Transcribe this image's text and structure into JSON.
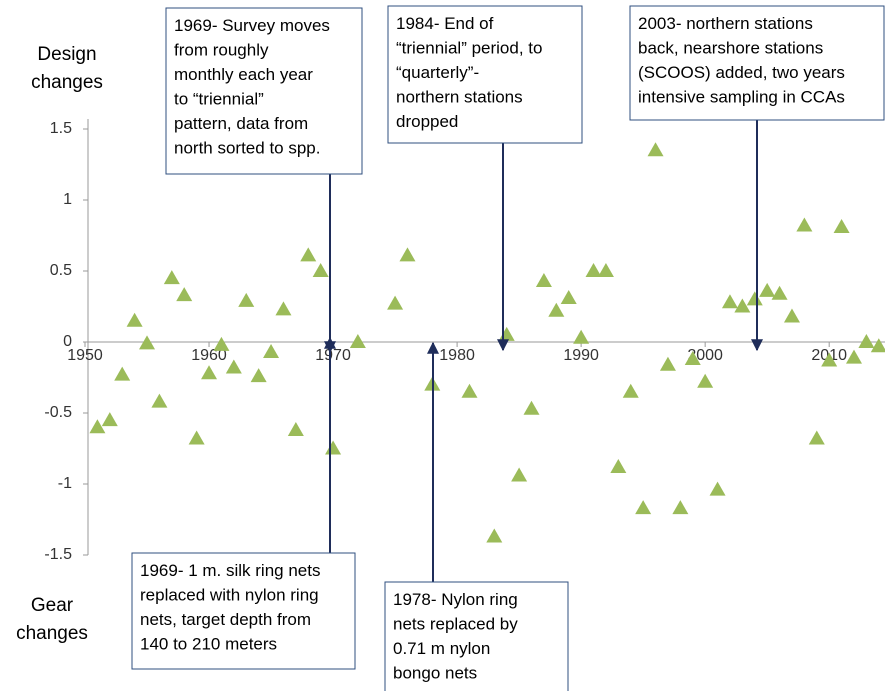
{
  "chart_data": {
    "type": "scatter",
    "side_labels": [
      [
        "Design",
        "changes"
      ],
      [
        "Gear",
        "changes"
      ]
    ],
    "x": [
      1951,
      1952,
      1953,
      1954,
      1955,
      1956,
      1957,
      1958,
      1959,
      1960,
      1961,
      1962,
      1963,
      1964,
      1965,
      1966,
      1967,
      1968,
      1969,
      1970,
      1972,
      1975,
      1976,
      1978,
      1981,
      1983,
      1984,
      1985,
      1986,
      1987,
      1988,
      1989,
      1990,
      1991,
      1992,
      1993,
      1994,
      1995,
      1996,
      1997,
      1998,
      1999,
      2000,
      2001,
      2002,
      2003,
      2004,
      2005,
      2006,
      2007,
      2008,
      2009,
      2010,
      2011,
      2012,
      2013,
      2014
    ],
    "values": [
      -0.6,
      -0.55,
      -0.23,
      0.15,
      -0.01,
      -0.42,
      0.45,
      0.33,
      -0.68,
      -0.22,
      -0.02,
      -0.18,
      0.29,
      -0.24,
      -0.07,
      0.23,
      -0.62,
      0.61,
      0.5,
      -0.75,
      0.0,
      0.27,
      0.61,
      -0.3,
      -0.35,
      -1.37,
      0.05,
      -0.94,
      -0.47,
      0.43,
      0.22,
      0.31,
      0.03,
      0.5,
      0.5,
      -0.88,
      -0.35,
      -1.17,
      1.35,
      -0.16,
      -1.17,
      -0.12,
      -0.28,
      -1.04,
      0.28,
      0.25,
      0.3,
      0.36,
      0.34,
      0.18,
      0.82,
      -0.68,
      -0.13,
      0.81,
      -0.11,
      0.0,
      -0.03
    ],
    "color": "#9bbb59",
    "xlim": [
      1950,
      2014.5
    ],
    "xticks": [
      1950,
      1960,
      1970,
      1980,
      1990,
      2000,
      2010
    ],
    "ylim": [
      -1.5,
      1.5
    ],
    "yticks": [
      -1.5,
      -1,
      -0.5,
      0,
      0.5,
      1,
      1.5
    ],
    "annotations": [
      {
        "lines": [
          "1969- Survey moves",
          "from roughly",
          "monthly each year",
          "to “triennial”",
          "pattern, data from",
          "north sorted to spp."
        ]
      },
      {
        "lines": [
          "1984- End of",
          "“triennial” period, to",
          "“quarterly”-",
          "northern stations",
          "dropped"
        ]
      },
      {
        "lines": [
          "2003- northern stations",
          "back, nearshore stations",
          "(SCOOS) added, two years",
          "intensive sampling in CCAs"
        ]
      },
      {
        "lines": [
          "1969- 1 m. silk ring nets",
          "replaced with nylon ring",
          "nets, target depth from",
          "140 to 210 meters"
        ]
      },
      {
        "lines": [
          "1978- Nylon ring",
          "nets replaced by",
          "0.71 m nylon",
          "bongo nets"
        ]
      }
    ]
  }
}
